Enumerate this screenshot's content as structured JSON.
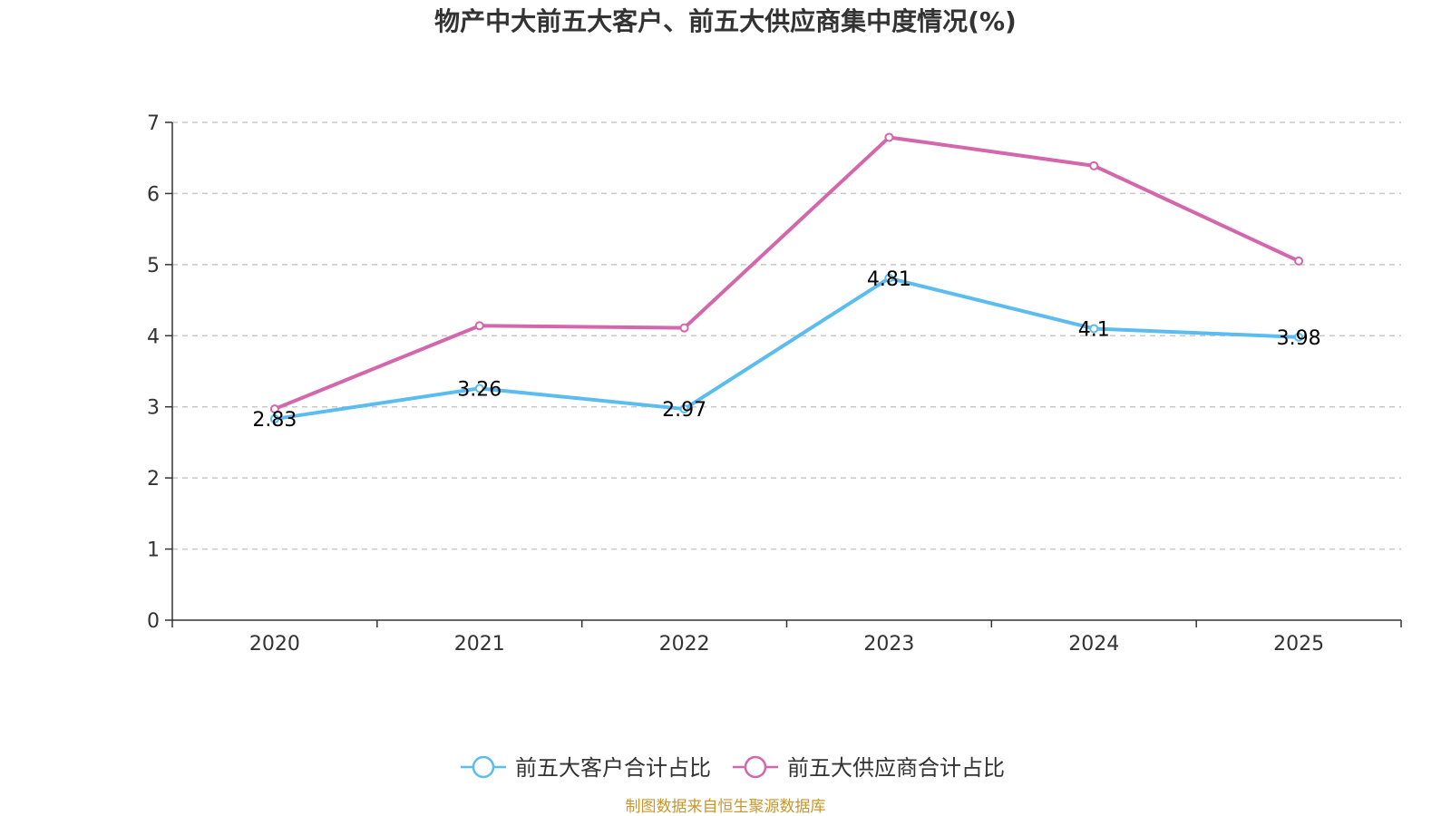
{
  "chart_data": {
    "type": "line",
    "title": "物产中大前五大客户、前五大供应商集中度情况(%)",
    "categories": [
      "2020",
      "2021",
      "2022",
      "2023",
      "2024",
      "2025"
    ],
    "ylim": [
      0,
      7
    ],
    "yticks": [
      0,
      1,
      2,
      3,
      4,
      5,
      6,
      7
    ],
    "grid": true,
    "series": [
      {
        "name": "前五大客户合计占比",
        "color": "#5bbcf0",
        "values": [
          2.83,
          3.26,
          2.97,
          4.81,
          4.1,
          3.98
        ],
        "labels": [
          "2.83",
          "3.26",
          "2.97",
          "4.81",
          "4.1",
          "3.98"
        ],
        "show_labels": true
      },
      {
        "name": "前五大供应商合计占比",
        "color": "#d466ac",
        "values": [
          2.97,
          4.14,
          4.11,
          6.79,
          6.39,
          5.05
        ],
        "show_labels": false
      }
    ],
    "legend_position": "bottom-center"
  },
  "source_note": "制图数据来自恒生聚源数据库"
}
